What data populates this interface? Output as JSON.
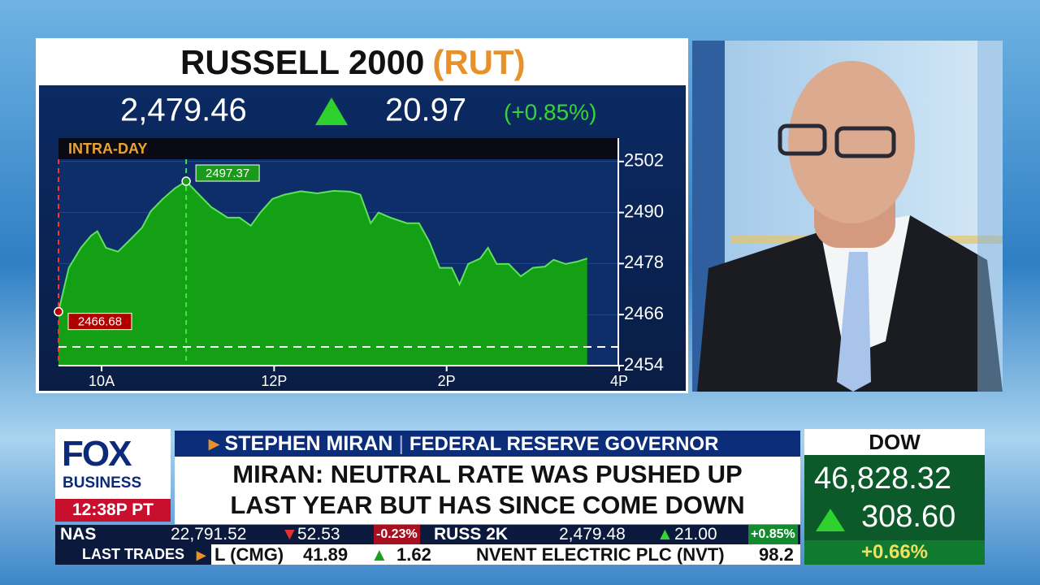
{
  "chart_data": {
    "type": "area",
    "title": "RUSSELL 2000",
    "symbol": "(RUT)",
    "price": "2,479.46",
    "change": "20.97",
    "change_pct": "(+0.85%)",
    "panel_label": "INTRA-DAY",
    "x": [
      9.5,
      9.62,
      9.76,
      9.88,
      9.95,
      10.05,
      10.19,
      10.33,
      10.47,
      10.57,
      10.71,
      10.85,
      10.98,
      11.13,
      11.27,
      11.46,
      11.6,
      11.73,
      11.84,
      11.98,
      12.12,
      12.31,
      12.5,
      12.69,
      12.88,
      13.0,
      13.12,
      13.21,
      13.35,
      13.54,
      13.68,
      13.8,
      13.92,
      14.06,
      14.15,
      14.25,
      14.39,
      14.48,
      14.58,
      14.72,
      14.86,
      15.0,
      15.14,
      15.24,
      15.38,
      15.52,
      15.63
    ],
    "values": [
      2466.68,
      2477.0,
      2481.7,
      2484.6,
      2485.6,
      2481.7,
      2480.8,
      2483.6,
      2486.5,
      2490.3,
      2493.2,
      2495.7,
      2497.37,
      2494.2,
      2491.3,
      2488.8,
      2488.8,
      2486.9,
      2490.0,
      2493.2,
      2494.2,
      2495.0,
      2494.5,
      2495.1,
      2494.9,
      2494.2,
      2487.5,
      2490.0,
      2488.8,
      2487.5,
      2487.5,
      2483.1,
      2477.0,
      2477.0,
      2473.1,
      2477.9,
      2479.2,
      2481.7,
      2477.9,
      2477.9,
      2475.0,
      2477.0,
      2477.3,
      2478.9,
      2477.9,
      2478.5,
      2479.2
    ],
    "color": "#14a014",
    "xlim": [
      9.5,
      16
    ],
    "xticks": [
      {
        "value": 10,
        "label": "10A"
      },
      {
        "value": 12,
        "label": "12P"
      },
      {
        "value": 14,
        "label": "2P"
      },
      {
        "value": 16,
        "label": "4P"
      }
    ],
    "ylim": [
      2454,
      2507.5
    ],
    "yticks": [
      2454,
      2466,
      2478,
      2490,
      2502
    ],
    "grid": true,
    "annotations": [
      {
        "x": 9.5,
        "value": 2466.68,
        "color": "#b00000"
      },
      {
        "x": 10.98,
        "value": 2497.37,
        "color": "#1a9a1a"
      }
    ]
  },
  "lower_third": {
    "logo": "FOX",
    "logo_sub": "BUSINESS",
    "time": "12:38P PT",
    "name": "STEPHEN MIRAN",
    "role": "FEDERAL RESERVE GOVERNOR",
    "headline": [
      "MIRAN: NEUTRAL RATE WAS PUSHED UP",
      "LAST YEAR BUT HAS SINCE COME DOWN"
    ]
  },
  "index_box": {
    "name": "DOW",
    "price": "46,828.32",
    "change": "308.60",
    "change_pct": "+0.66%"
  },
  "ticker": {
    "row1": [
      {
        "symbol": "NAS",
        "price": "22,791.52",
        "change": "52.53",
        "pct": "-0.23%"
      },
      {
        "symbol": "RUSS 2K",
        "price": "2,479.48",
        "change": "21.00",
        "pct": "+0.85%"
      }
    ],
    "label": "LAST TRADES",
    "row2": [
      {
        "symbol": "L (CMG)",
        "price": "41.89",
        "change": "1.62"
      },
      {
        "symbol": "NVENT ELECTRIC PLC (NVT)",
        "price": "98.2"
      }
    ]
  }
}
